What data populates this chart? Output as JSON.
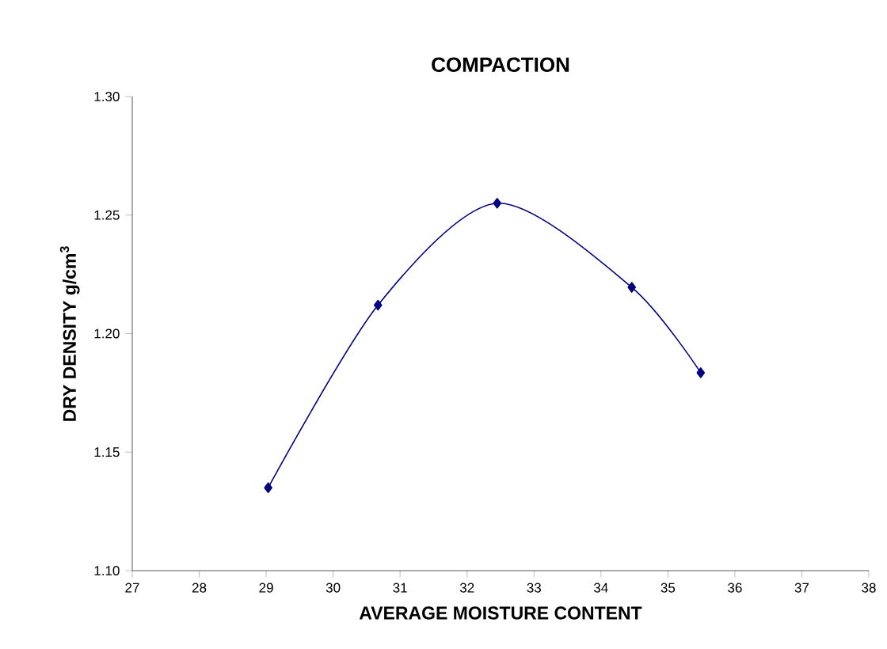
{
  "chart_data": {
    "type": "line",
    "title": "COMPACTION",
    "xlabel": "AVERAGE MOISTURE CONTENT",
    "ylabel": "DRY DENSITY g/cm$^{3}$",
    "series": [
      {
        "color": "#000080",
        "x": [
          29.03,
          30.67,
          32.45,
          34.46,
          35.49
        ],
        "values": [
          1.135,
          1.212,
          1.255,
          1.2195,
          1.1835
        ]
      }
    ],
    "xlim": [
      27,
      38
    ],
    "ylim": [
      1.1,
      1.3
    ],
    "xticks": [
      27,
      28,
      29,
      30,
      31,
      32,
      33,
      34,
      35,
      36,
      37,
      38
    ],
    "yticks": [
      {
        "value": 1.1,
        "label": "1.10"
      },
      {
        "value": 1.15,
        "label": "1.15"
      },
      {
        "value": 1.2,
        "label": "1.20"
      },
      {
        "value": 1.25,
        "label": "1.25"
      },
      {
        "value": 1.3,
        "label": "1.30"
      }
    ],
    "grid": false,
    "marker": "diamond",
    "line_style": "solid"
  }
}
